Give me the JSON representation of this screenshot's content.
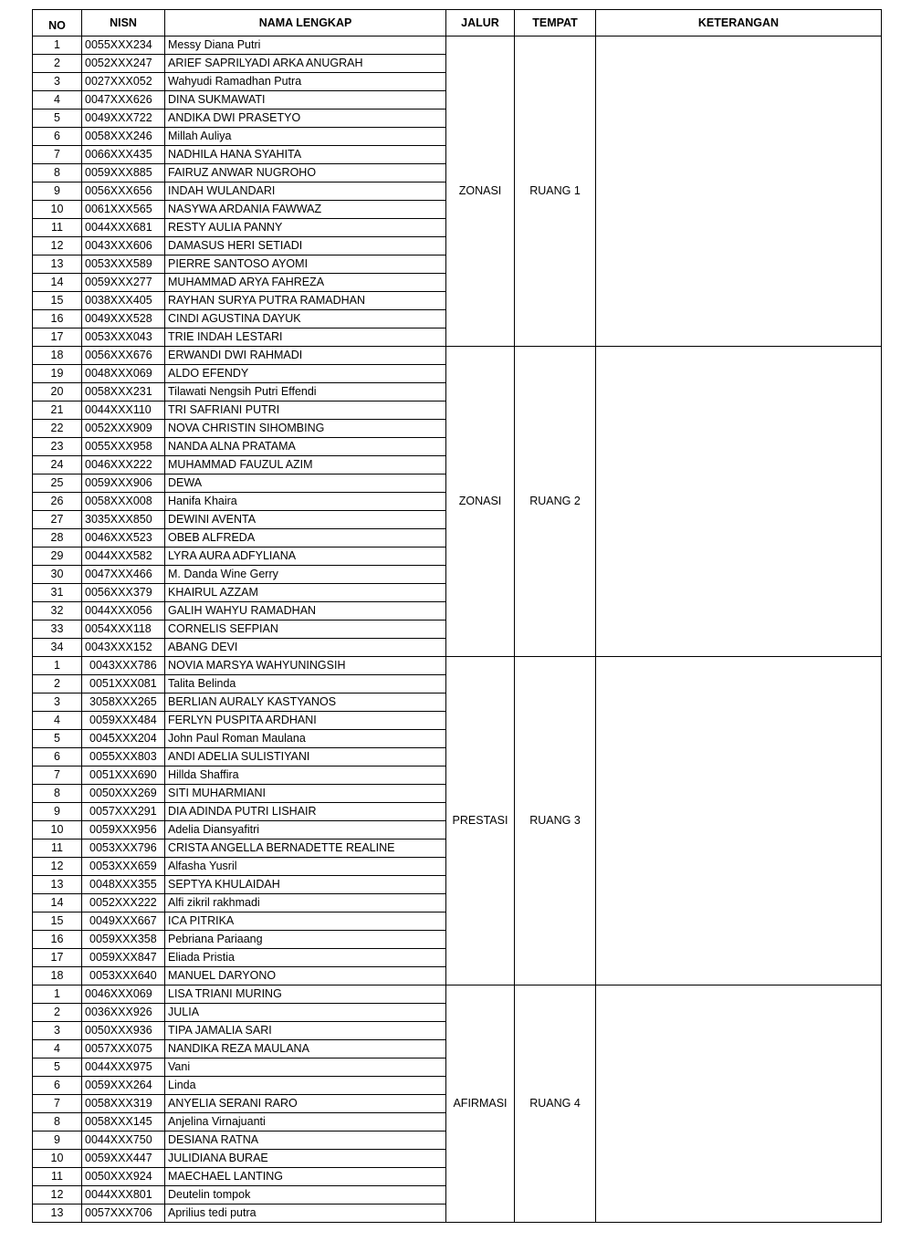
{
  "headers": {
    "no": "NO",
    "nisn": "NISN",
    "nama": "NAMA LENGKAP",
    "jalur": "JALUR",
    "tempat": "TEMPAT",
    "keterangan": "KETERANGAN"
  },
  "groups": [
    {
      "jalur": "ZONASI",
      "tempat": "RUANG 1",
      "keterangan": "",
      "rows": [
        {
          "no": "1",
          "nisn": "0055XXX234",
          "nama": "Messy Diana Putri"
        },
        {
          "no": "2",
          "nisn": "0052XXX247",
          "nama": "ARIEF SAPRILYADI ARKA ANUGRAH"
        },
        {
          "no": "3",
          "nisn": "0027XXX052",
          "nama": "Wahyudi Ramadhan Putra"
        },
        {
          "no": "4",
          "nisn": "0047XXX626",
          "nama": "DINA SUKMAWATI"
        },
        {
          "no": "5",
          "nisn": "0049XXX722",
          "nama": "ANDIKA DWI PRASETYO"
        },
        {
          "no": "6",
          "nisn": "0058XXX246",
          "nama": "Millah Auliya"
        },
        {
          "no": "7",
          "nisn": "0066XXX435",
          "nama": "NADHILA HANA SYAHITA"
        },
        {
          "no": "8",
          "nisn": "0059XXX885",
          "nama": "FAIRUZ ANWAR NUGROHO"
        },
        {
          "no": "9",
          "nisn": "0056XXX656",
          "nama": "INDAH WULANDARI"
        },
        {
          "no": "10",
          "nisn": "0061XXX565",
          "nama": "NASYWA ARDANIA FAWWAZ"
        },
        {
          "no": "11",
          "nisn": "0044XXX681",
          "nama": "RESTY AULIA PANNY"
        },
        {
          "no": "12",
          "nisn": "0043XXX606",
          "nama": "DAMASUS HERI SETIADI"
        },
        {
          "no": "13",
          "nisn": "0053XXX589",
          "nama": "PIERRE SANTOSO AYOMI"
        },
        {
          "no": "14",
          "nisn": "0059XXX277",
          "nama": "MUHAMMAD ARYA FAHREZA"
        },
        {
          "no": "15",
          "nisn": "0038XXX405",
          "nama": "RAYHAN SURYA PUTRA RAMADHAN"
        },
        {
          "no": "16",
          "nisn": "0049XXX528",
          "nama": "CINDI AGUSTINA DAYUK"
        },
        {
          "no": "17",
          "nisn": "0053XXX043",
          "nama": "TRIE INDAH LESTARI"
        }
      ]
    },
    {
      "jalur": "ZONASI",
      "tempat": "RUANG 2",
      "keterangan": "",
      "rows": [
        {
          "no": "18",
          "nisn": "0056XXX676",
          "nama": "ERWANDI DWI RAHMADI"
        },
        {
          "no": "19",
          "nisn": "0048XXX069",
          "nama": "ALDO EFENDY"
        },
        {
          "no": "20",
          "nisn": "0058XXX231",
          "nama": "Tilawati Nengsih Putri Effendi"
        },
        {
          "no": "21",
          "nisn": "0044XXX110",
          "nama": "TRI SAFRIANI PUTRI"
        },
        {
          "no": "22",
          "nisn": "0052XXX909",
          "nama": "NOVA CHRISTIN SIHOMBING"
        },
        {
          "no": "23",
          "nisn": "0055XXX958",
          "nama": "NANDA ALNA PRATAMA"
        },
        {
          "no": "24",
          "nisn": "0046XXX222",
          "nama": "MUHAMMAD FAUZUL AZIM"
        },
        {
          "no": "25",
          "nisn": "0059XXX906",
          "nama": "DEWA"
        },
        {
          "no": "26",
          "nisn": "0058XXX008",
          "nama": "Hanifa Khaira"
        },
        {
          "no": "27",
          "nisn": "3035XXX850",
          "nama": "DEWINI AVENTA"
        },
        {
          "no": "28",
          "nisn": "0046XXX523",
          "nama": "OBEB ALFREDA"
        },
        {
          "no": "29",
          "nisn": "0044XXX582",
          "nama": "LYRA AURA ADFYLIANA"
        },
        {
          "no": "30",
          "nisn": "0047XXX466",
          "nama": "M. Danda Wine Gerry"
        },
        {
          "no": "31",
          "nisn": "0056XXX379",
          "nama": "KHAIRUL AZZAM"
        },
        {
          "no": "32",
          "nisn": "0044XXX056",
          "nama": "GALIH WAHYU RAMADHAN"
        },
        {
          "no": "33",
          "nisn": "0054XXX118",
          "nama": "CORNELIS SEFPIAN"
        },
        {
          "no": "34",
          "nisn": "0043XXX152",
          "nama": "ABANG DEVI"
        }
      ]
    },
    {
      "jalur": "PRESTASI",
      "tempat": "RUANG 3",
      "keterangan": "",
      "rows": [
        {
          "no": "1",
          "nisn": "0043XXX786",
          "nama": "NOVIA MARSYA WAHYUNINGSIH"
        },
        {
          "no": "2",
          "nisn": "0051XXX081",
          "nama": "Talita Belinda"
        },
        {
          "no": "3",
          "nisn": "3058XXX265",
          "nama": "BERLIAN AURALY KASTYANOS"
        },
        {
          "no": "4",
          "nisn": "0059XXX484",
          "nama": "FERLYN PUSPITA ARDHANI"
        },
        {
          "no": "5",
          "nisn": "0045XXX204",
          "nama": "John Paul Roman Maulana"
        },
        {
          "no": "6",
          "nisn": "0055XXX803",
          "nama": "ANDI ADELIA SULISTIYANI"
        },
        {
          "no": "7",
          "nisn": "0051XXX690",
          "nama": "Hillda Shaffira"
        },
        {
          "no": "8",
          "nisn": "0050XXX269",
          "nama": "SITI MUHARMIANI"
        },
        {
          "no": "9",
          "nisn": "0057XXX291",
          "nama": "DIA ADINDA PUTRI LISHAIR"
        },
        {
          "no": "10",
          "nisn": "0059XXX956",
          "nama": "Adelia Diansyafitri"
        },
        {
          "no": "11",
          "nisn": "0053XXX796",
          "nama": "CRISTA ANGELLA BERNADETTE REALINE"
        },
        {
          "no": "12",
          "nisn": "0053XXX659",
          "nama": "Alfasha Yusril"
        },
        {
          "no": "13",
          "nisn": "0048XXX355",
          "nama": "SEPTYA KHULAIDAH"
        },
        {
          "no": "14",
          "nisn": "0052XXX222",
          "nama": "Alfi zikril rakhmadi"
        },
        {
          "no": "15",
          "nisn": "0049XXX667",
          "nama": "ICA PITRIKA"
        },
        {
          "no": "16",
          "nisn": "0059XXX358",
          "nama": "Pebriana Pariaang"
        },
        {
          "no": "17",
          "nisn": "0059XXX847",
          "nama": "Eliada Pristia"
        },
        {
          "no": "18",
          "nisn": "0053XXX640",
          "nama": "MANUEL DARYONO"
        }
      ]
    },
    {
      "jalur": "AFIRMASI",
      "tempat": "RUANG 4",
      "keterangan": "",
      "rows": [
        {
          "no": "1",
          "nisn": "0046XXX069",
          "nama": "LISA TRIANI MURING"
        },
        {
          "no": "2",
          "nisn": "0036XXX926",
          "nama": "JULIA"
        },
        {
          "no": "3",
          "nisn": "0050XXX936",
          "nama": "TIPA JAMALIA SARI"
        },
        {
          "no": "4",
          "nisn": "0057XXX075",
          "nama": "NANDIKA REZA MAULANA"
        },
        {
          "no": "5",
          "nisn": "0044XXX975",
          "nama": "Vani"
        },
        {
          "no": "6",
          "nisn": "0059XXX264",
          "nama": "Linda"
        },
        {
          "no": "7",
          "nisn": "0058XXX319",
          "nama": "ANYELIA SERANI RARO"
        },
        {
          "no": "8",
          "nisn": "0058XXX145",
          "nama": "Anjelina Virnajuanti"
        },
        {
          "no": "9",
          "nisn": "0044XXX750",
          "nama": "DESIANA RATNA"
        },
        {
          "no": "10",
          "nisn": "0059XXX447",
          "nama": "JULIDIANA BURAE"
        },
        {
          "no": "11",
          "nisn": "0050XXX924",
          "nama": "MAECHAEL LANTING"
        },
        {
          "no": "12",
          "nisn": "0044XXX801",
          "nama": "Deutelin tompok"
        },
        {
          "no": "13",
          "nisn": "0057XXX706",
          "nama": "Aprilius tedi putra"
        }
      ]
    }
  ]
}
